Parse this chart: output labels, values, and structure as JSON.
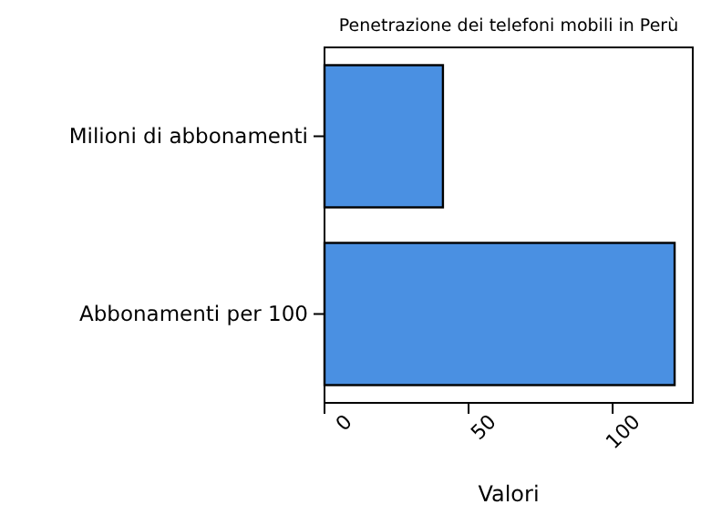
{
  "chart_data": {
    "type": "bar",
    "orientation": "horizontal",
    "title": "Penetrazione dei telefoni mobili in Perù",
    "xlabel": "Valori",
    "categories": [
      "Milioni di abbonamenti",
      "Abbonamenti per 100"
    ],
    "values": [
      41.1,
      121.5
    ],
    "color": "#4a90e2",
    "xlim": [
      0,
      127.8
    ],
    "xticks": [
      0,
      50,
      100
    ],
    "grid": false
  }
}
